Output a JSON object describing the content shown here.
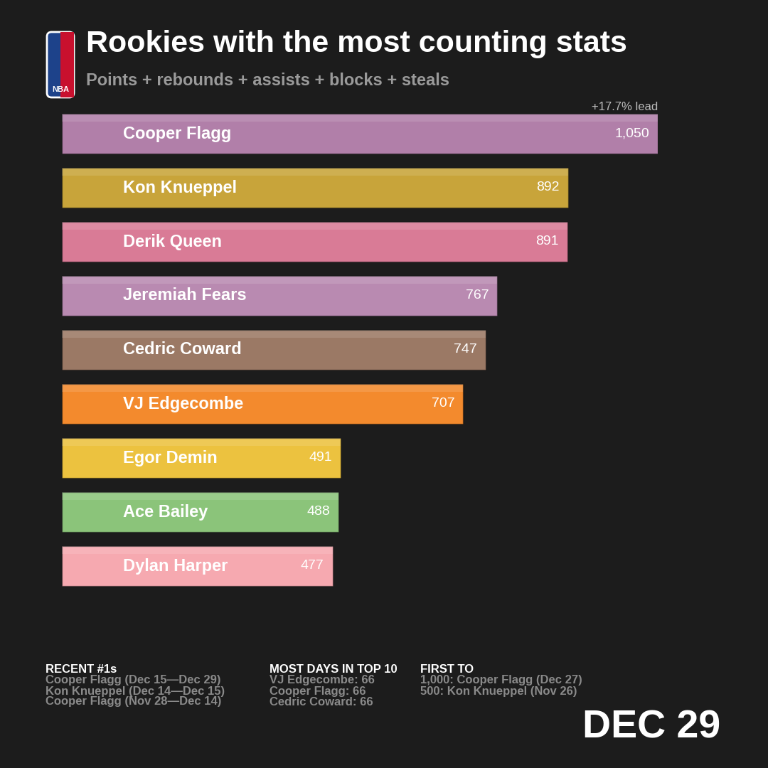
{
  "chart_data": {
    "type": "bar",
    "orientation": "horizontal",
    "title": "Rookies with the most counting stats",
    "subtitle": "Points + rebounds + assists + blocks + steals",
    "logo_text": "NBA",
    "categories": [
      "Cooper Flagg",
      "Kon Knueppel",
      "Derik Queen",
      "Jeremiah Fears",
      "Cedric Coward",
      "VJ Edgecombe",
      "Egor Demin",
      "Ace Bailey",
      "Dylan Harper"
    ],
    "values": [
      1050,
      892,
      891,
      767,
      747,
      707,
      491,
      488,
      477
    ],
    "value_labels": [
      "1,050",
      "892",
      "891",
      "767",
      "747",
      "707",
      "491",
      "488",
      "477"
    ],
    "colors": [
      "#b17fa9",
      "#c8a43a",
      "#d97b96",
      "#b98ab1",
      "#9b7965",
      "#f38a2d",
      "#ecc23f",
      "#8bc47a",
      "#f6a9b0"
    ],
    "data_labels": true,
    "tick_labels": false,
    "xlim": [
      0,
      1050
    ],
    "lead_label": "+17.7% lead",
    "footer": [
      {
        "heading": "RECENT #1s",
        "lines": [
          "Cooper Flagg (Dec 15—Dec 29)",
          "Kon Knueppel (Dec 14—Dec 15)",
          "Cooper Flagg (Nov 28—Dec 14)"
        ]
      },
      {
        "heading": "MOST DAYS IN TOP 10",
        "lines": [
          "VJ Edgecombe: 66",
          "Cooper Flagg: 66",
          "Cedric Coward: 66"
        ]
      },
      {
        "heading": "FIRST TO",
        "lines": [
          "1,000: Cooper Flagg (Dec 27)",
          "500: Kon Knueppel (Nov 26)"
        ]
      }
    ],
    "date": "DEC 29"
  }
}
